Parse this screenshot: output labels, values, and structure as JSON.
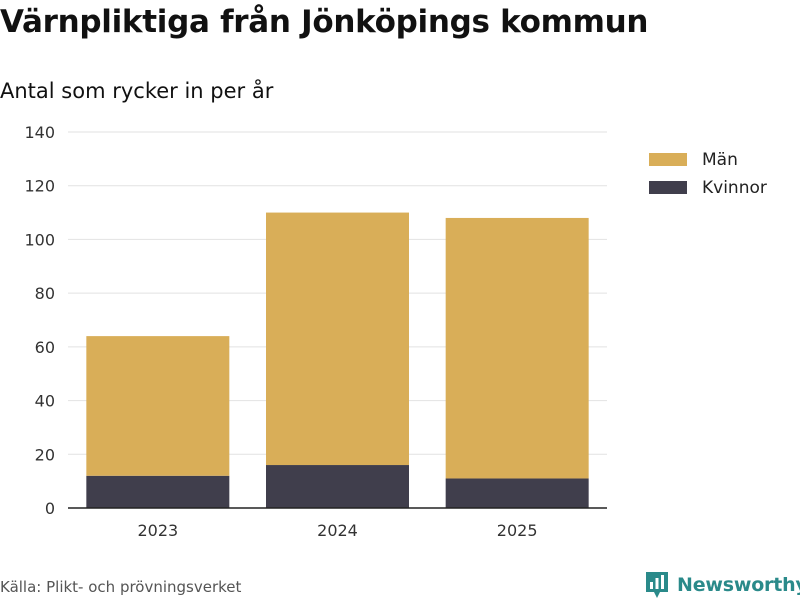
{
  "header": {
    "title": "Värnpliktiga från Jönköpings kommun",
    "subtitle": "Antal som rycker in per år"
  },
  "footer": {
    "source": "Källa: Plikt- och prövningsverket",
    "brand": "Newsworthy"
  },
  "colors": {
    "man": "#d9ae58",
    "kvinnor": "#403e4c",
    "grid": "#e2e2e2",
    "axis": "#222222",
    "brand": "#2a8a8a"
  },
  "chart_data": {
    "type": "bar",
    "stacked": true,
    "title": "Värnpliktiga från Jönköpings kommun",
    "subtitle": "Antal som rycker in per år",
    "xlabel": "",
    "ylabel": "",
    "categories": [
      "2023",
      "2024",
      "2025"
    ],
    "series": [
      {
        "name": "Kvinnor",
        "values": [
          12,
          16,
          11
        ],
        "color": "#403e4c"
      },
      {
        "name": "Män",
        "values": [
          52,
          94,
          97
        ],
        "color": "#d9ae58"
      }
    ],
    "legend_order": [
      "Män",
      "Kvinnor"
    ],
    "ylim": [
      0,
      140
    ],
    "yticks": [
      0,
      20,
      40,
      60,
      80,
      100,
      120,
      140
    ],
    "grid": true,
    "legend_position": "right"
  }
}
